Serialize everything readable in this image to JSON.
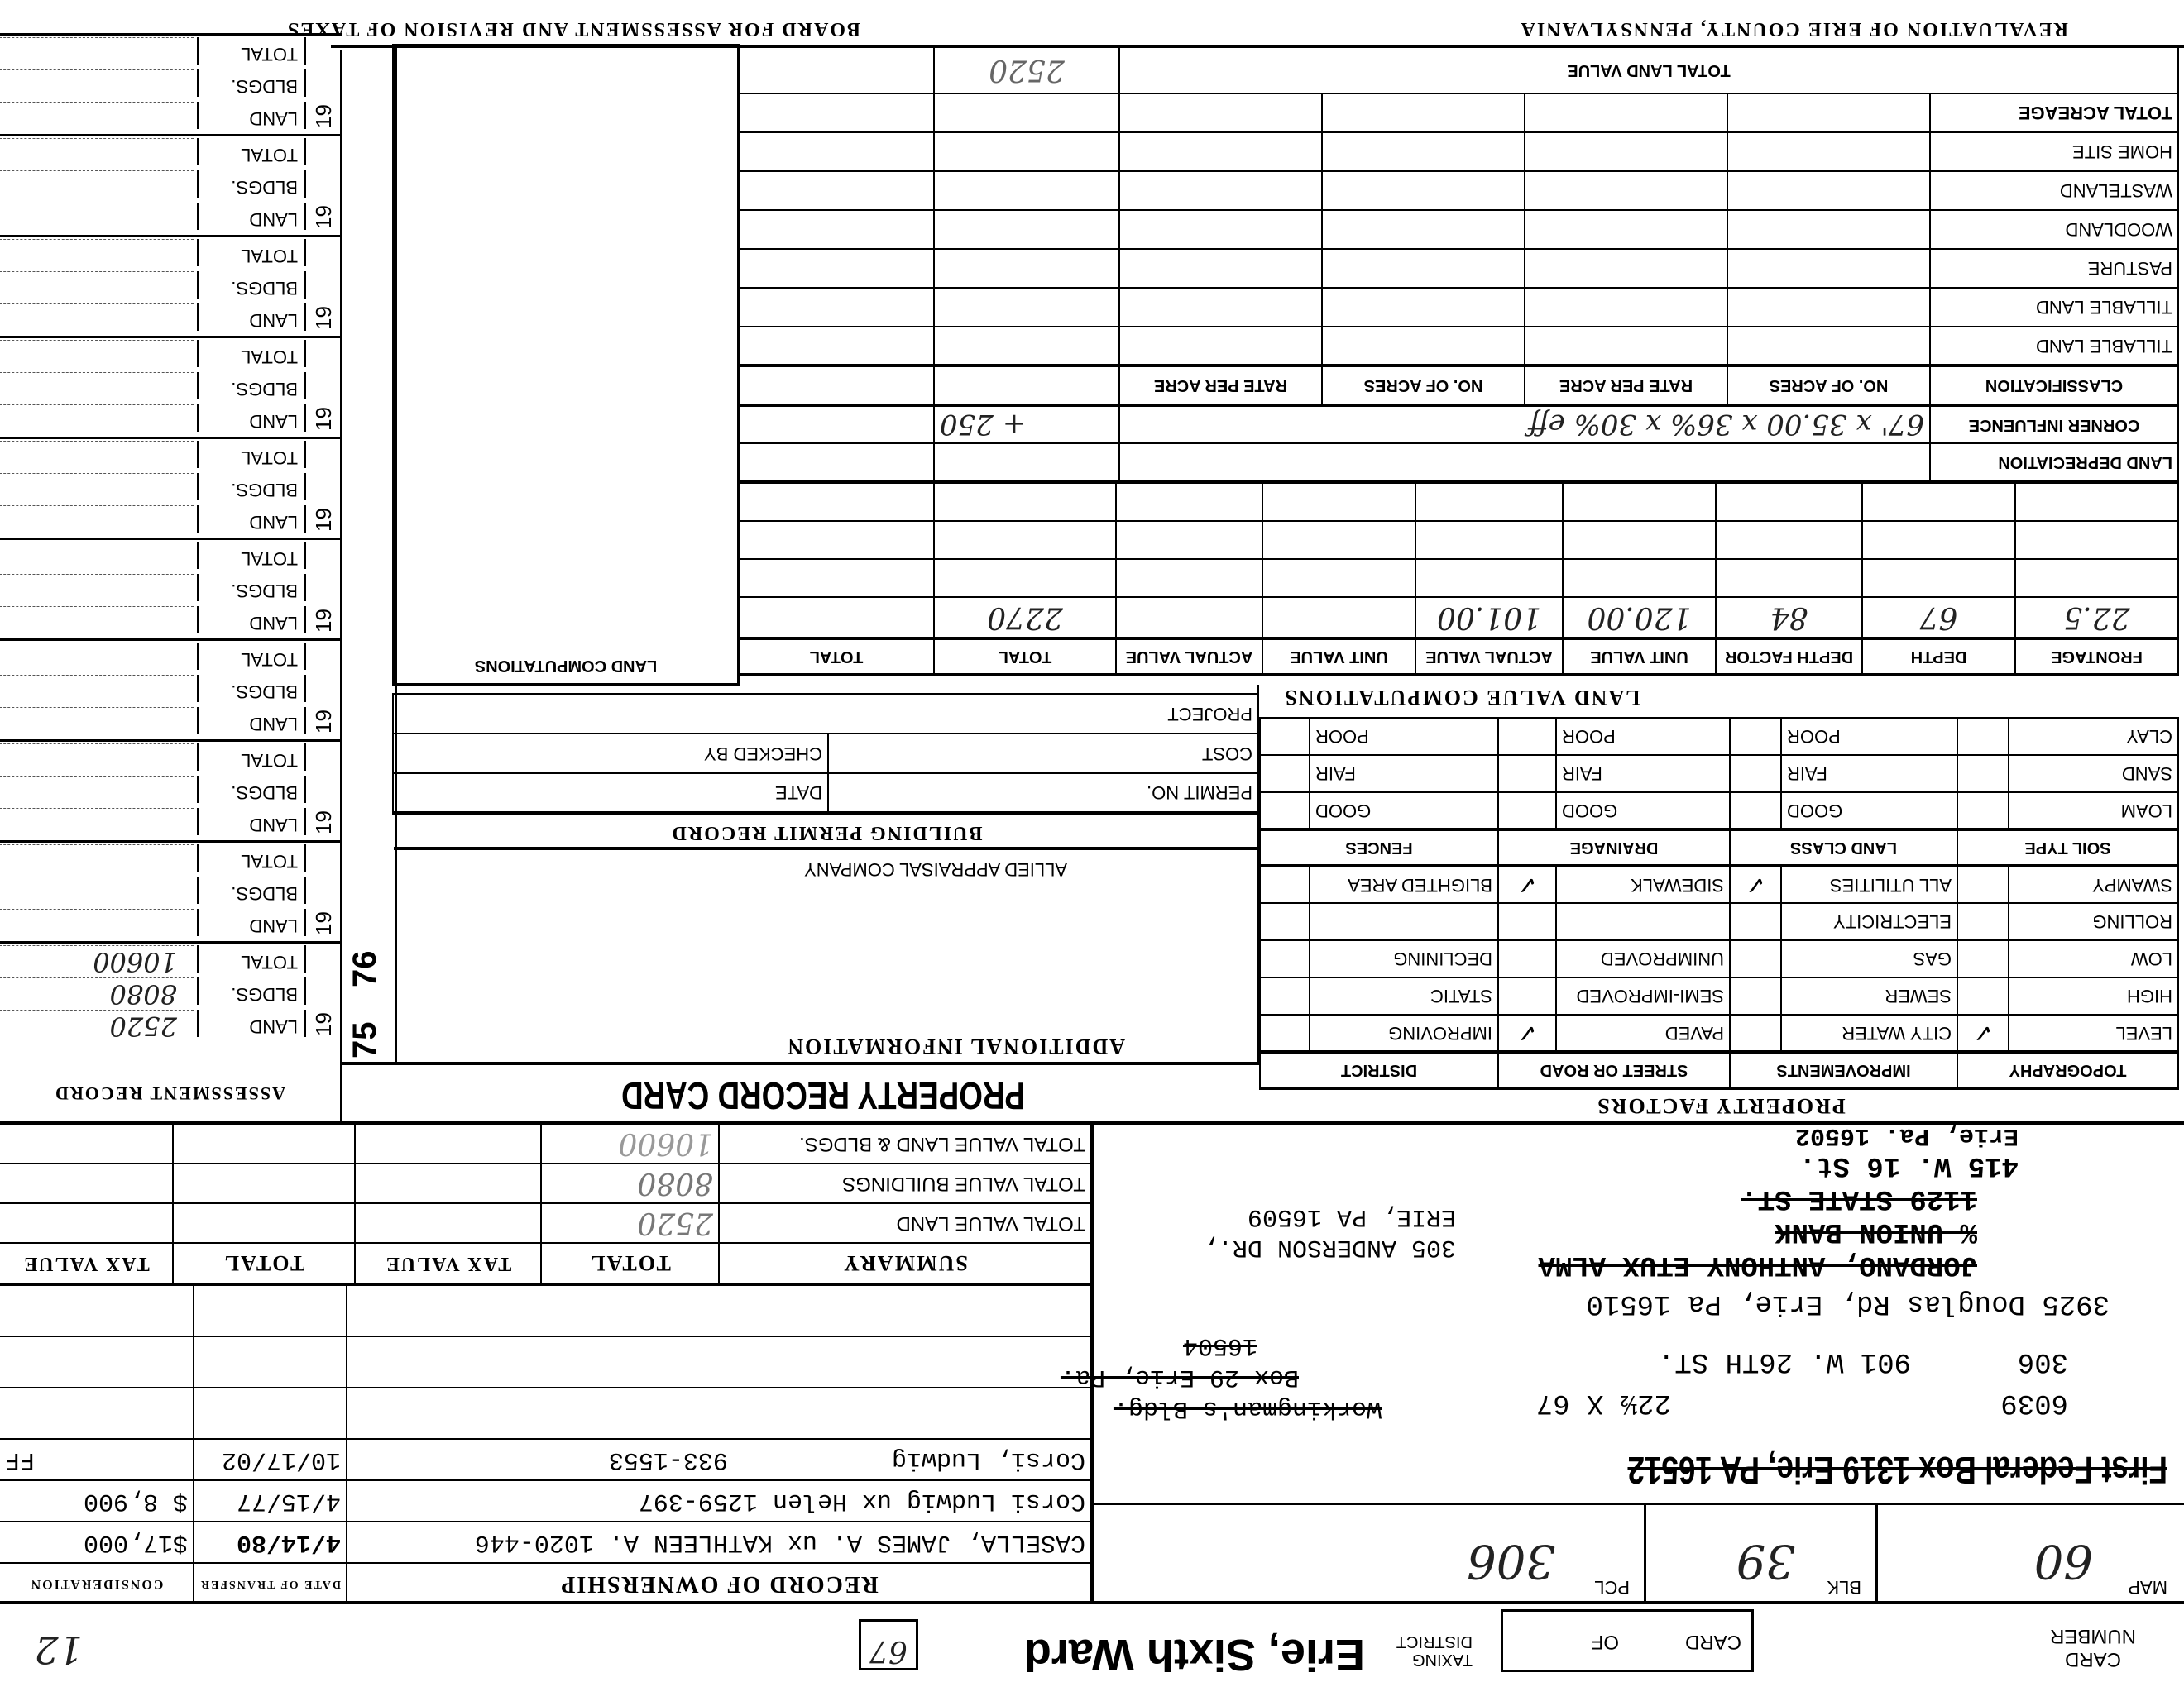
{
  "header": {
    "card_number_label": "CARD NUMBER",
    "card_label": "CARD",
    "of_label": "OF",
    "taxing_district_label": "TAXING DISTRICT",
    "taxing_district": "Erie, Sixth Ward",
    "box_number": "67",
    "corner_number": "12"
  },
  "parcel": {
    "map_label": "MAP",
    "map": "60",
    "blk_label": "BLK",
    "blk": "39",
    "pcl_label": "PCL",
    "pcl": "306"
  },
  "address": {
    "bank_line": "First Federal Box 1319 Erie, PA 16512",
    "parcel_id": "6039",
    "size": "22½ X 67",
    "street_no": "306",
    "street": "901 W. 26TH ST.",
    "old_box_1": "Workingman's Bldg.",
    "old_box_2": "Box 29 Erie, Pa.",
    "old_box_3": "16504",
    "owner_addr": "3925 Douglas Rd, Erie, Pa 16510",
    "old_owner": "JORDANO, ANTHONY ETUX ALMA",
    "old_bank": "% UNION BANK",
    "old_street": "1129 STATE ST.",
    "addr2_line1": "415 W. 16 St.",
    "addr2_line2": "Erie, Pa. 16502",
    "addr3_line1": "305 ANDERSON DR.,",
    "addr3_line2": "ERIE, PA 16509"
  },
  "ownership": {
    "title": "RECORD OF OWNERSHIP",
    "date_header": "DATE OF TRANSFER",
    "consideration_header": "CONSIDERATION",
    "rows": [
      {
        "name": "CASELLA, JAMES A. ux KATHLEEN A.  1020-446",
        "date": "4/14/80",
        "consideration": "$17,000"
      },
      {
        "name": "Corsi Ludwig ux Helen   1259-397",
        "date": "4/15/77",
        "consideration": "$ 8,900"
      },
      {
        "name": "Corsi, Ludwig           933-1553",
        "date": "10/17/02",
        "consideration": "FF"
      }
    ]
  },
  "summary": {
    "title": "SUMMARY",
    "total": "TOTAL",
    "tax_value": "TAX VALUE",
    "land_label": "TOTAL VALUE LAND",
    "bldgs_label": "TOTAL VALUE BUILDINGS",
    "total_label": "TOTAL VALUE LAND & BLDGS.",
    "land": "2520",
    "bldgs": "8080",
    "total_value": "10600"
  },
  "title": "PROPERTY RECORD CARD",
  "additional_info": "ADDITIONAL INFORMATION",
  "allied": "ALLIED APPRAISAL COMPANY",
  "stamp_years": [
    "75",
    "76"
  ],
  "permit": {
    "title": "BUILDING PERMIT RECORD",
    "permit_no": "PERMIT NO.",
    "date": "DATE",
    "cost": "COST",
    "checked_by": "CHECKED BY",
    "project": "PROJECT"
  },
  "land_computations": "LAND COMPUTATIONS",
  "assessment": {
    "title": "ASSESSMENT RECORD",
    "year_prefix": "19",
    "land": "LAND",
    "bldgs": "BLDGS.",
    "total": "TOTAL",
    "first": {
      "land": "2520",
      "bldgs": "8080",
      "total": "10600"
    }
  },
  "factors": {
    "title": "PROPERTY FACTORS",
    "headers": [
      "TOPOGRAPHY",
      "IMPROVEMENTS",
      "STREET OR ROAD",
      "DISTRICT"
    ],
    "rows": [
      [
        "LEVEL",
        "CITY WATER",
        "PAVED",
        "IMPROVING"
      ],
      [
        "HIGH",
        "SEWER",
        "SEMI-IMPROVED",
        "STATIC"
      ],
      [
        "LOW",
        "GAS",
        "UNIMPROVED",
        "DECLINING"
      ],
      [
        "ROLLING",
        "ELECTRICITY",
        "",
        ""
      ],
      [
        "SWAMPY",
        "ALL UTILITIES",
        "SIDEWALK",
        "BLIGHTED AREA"
      ]
    ],
    "checks": [
      [
        "✓",
        "",
        "✓",
        ""
      ],
      [
        "",
        "",
        "",
        ""
      ],
      [
        "",
        "",
        "",
        ""
      ],
      [
        "",
        "",
        "",
        ""
      ],
      [
        "",
        "✓",
        "✓",
        ""
      ]
    ],
    "soil_headers": [
      "SOIL TYPE",
      "LAND CLASS",
      "DRAINAGE",
      "FENCES"
    ],
    "soil_rows": [
      [
        "LOAM",
        "GOOD",
        "GOOD",
        "GOOD"
      ],
      [
        "SAND",
        "FAIR",
        "FAIR",
        "FAIR"
      ],
      [
        "CLAY",
        "POOR",
        "POOR",
        "POOR"
      ]
    ]
  },
  "land_value": {
    "title": "LAND VALUE COMPUTATIONS",
    "headers": [
      "FRONTAGE",
      "DEPTH",
      "DEPTH FACTOR",
      "UNIT VALUE",
      "ACTUAL VALUE",
      "UNIT VALUE",
      "ACTUAL VALUE",
      "TOTAL",
      "TOTAL"
    ],
    "values": [
      "22.5",
      "67",
      "84",
      "120.00",
      "101.00",
      "",
      "",
      "2270",
      ""
    ],
    "depreciation": "LAND DEPRECIATION",
    "corner": "CORNER INFLUENCE",
    "corner_calc": "67' x 35.00 x 36% x 30% eff",
    "corner_add": "+ 250",
    "class_headers": [
      "CLASSIFICATION",
      "NO. OF ACRES",
      "RATE PER ACRE",
      "NO. OF ACRES",
      "RATE PER ACRE"
    ],
    "class_rows": [
      "TILLABLE LAND",
      "TILLABLE LAND",
      "PASTURE",
      "WOODLAND",
      "WASTELAND",
      "HOME SITE",
      "TOTAL ACREAGE"
    ],
    "total_land_value": "TOTAL LAND VALUE",
    "total_land_amount": "2520"
  },
  "footer": {
    "revaluation": "REVALUATION OF ERIE COUNTY, PENNSYLVANIA",
    "board": "BOARD FOR ASSESSMENT AND REVISION OF TAXES"
  }
}
